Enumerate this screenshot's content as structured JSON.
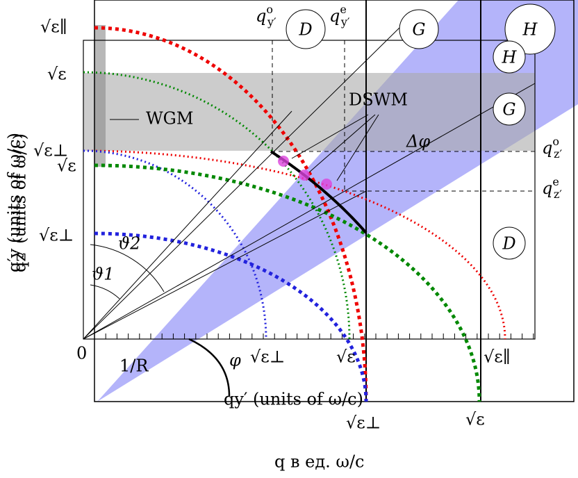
{
  "labels": {
    "sqrt_eps_par_left": "√ε∥",
    "sqrt_eps_left": "√ε",
    "sqrt_eps_perp_left": "√ε⊥",
    "sqrt_eps_left2": "√ε",
    "sqrt_eps_perp_left2": "√ε⊥",
    "qyo": {
      "symbol": "q",
      "sup": "o",
      "sub": "y′"
    },
    "qye": {
      "symbol": "q",
      "sup": "e",
      "sub": "y′"
    },
    "qzo": {
      "symbol": "q",
      "sup": "o",
      "sub": "z′"
    },
    "qze": {
      "symbol": "q",
      "sup": "e",
      "sub": "z′"
    },
    "D_top": "D",
    "G_top": "G",
    "H_top": "H",
    "H_small": "H",
    "G_small": "G",
    "D_small": "D",
    "wgm": "WGM",
    "dswm": "DSWM",
    "delta_phi": "Δφ",
    "theta2": "ϑ2",
    "theta1": "ϑ1",
    "zero": "0",
    "one_over_r": "1/R",
    "phi": "φ",
    "sqrt_eps_perp_axis": "√ε⊥",
    "sqrt_eps_axis": "√ε",
    "sqrt_eps_par_axis": "√ε∥",
    "x_axis_inner": "qy′ (units of ω/c)",
    "sqrt_eps_perp_bottom": "√ε⊥",
    "sqrt_eps_bottom": "√ε",
    "x_axis_outer": "q в ед. ω/c",
    "y_axis_a": "q′y (units of ω/c)",
    "y_axis_b": "qz′ (units of ω/c)"
  }
}
